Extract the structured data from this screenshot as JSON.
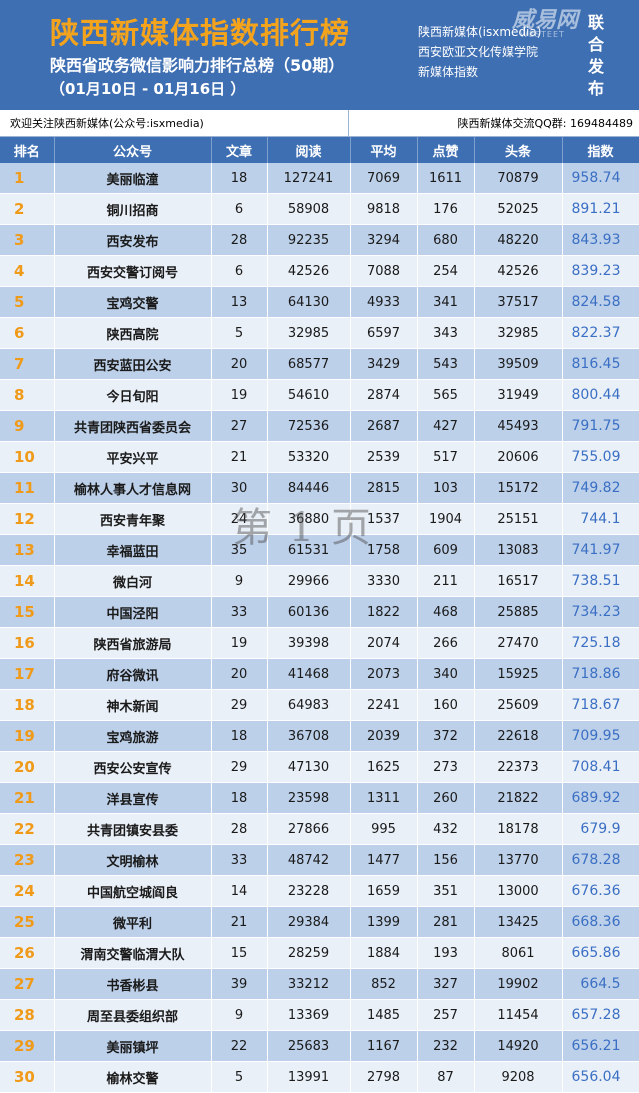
{
  "header": {
    "title": "陕西新媒体指数排行榜",
    "subtitle": "陕西省政务微信影响力排行总榜（50期）",
    "date_range": "（01月10日 - 01月16日 ）",
    "right_lines": [
      "陕西新媒体(isxmedia)",
      "西安欧亚文化传媒学院",
      "新媒体指数"
    ],
    "publish_label": "联合发布",
    "logo_text": "威易网",
    "logo_url": "WESTEET"
  },
  "follow_bar": {
    "left_text": "欢迎关注陕西新媒体(公众号:isxmedia)",
    "right_text": "陕西新媒体交流QQ群: 169484489"
  },
  "table": {
    "columns": [
      "排名",
      "公众号",
      "文章",
      "阅读",
      "平均",
      "点赞",
      "头条",
      "指数"
    ],
    "rows": [
      [
        "1",
        "美丽临潼",
        "18",
        "127241",
        "7069",
        "1611",
        "70879",
        "958.74"
      ],
      [
        "2",
        "铜川招商",
        "6",
        "58908",
        "9818",
        "176",
        "52025",
        "891.21"
      ],
      [
        "3",
        "西安发布",
        "28",
        "92235",
        "3294",
        "680",
        "48220",
        "843.93"
      ],
      [
        "4",
        "西安交警订阅号",
        "6",
        "42526",
        "7088",
        "254",
        "42526",
        "839.23"
      ],
      [
        "5",
        "宝鸡交警",
        "13",
        "64130",
        "4933",
        "341",
        "37517",
        "824.58"
      ],
      [
        "6",
        "陕西高院",
        "5",
        "32985",
        "6597",
        "343",
        "32985",
        "822.37"
      ],
      [
        "7",
        "西安蓝田公安",
        "20",
        "68577",
        "3429",
        "543",
        "39509",
        "816.45"
      ],
      [
        "8",
        "今日旬阳",
        "19",
        "54610",
        "2874",
        "565",
        "31949",
        "800.44"
      ],
      [
        "9",
        "共青团陕西省委员会",
        "27",
        "72536",
        "2687",
        "427",
        "45493",
        "791.75"
      ],
      [
        "10",
        "平安兴平",
        "21",
        "53320",
        "2539",
        "517",
        "20606",
        "755.09"
      ],
      [
        "11",
        "榆林人事人才信息网",
        "30",
        "84446",
        "2815",
        "103",
        "15172",
        "749.82"
      ],
      [
        "12",
        "西安青年聚",
        "24",
        "36880",
        "1537",
        "1904",
        "25151",
        "744.1"
      ],
      [
        "13",
        "幸福蓝田",
        "35",
        "61531",
        "1758",
        "609",
        "13083",
        "741.97"
      ],
      [
        "14",
        "微白河",
        "9",
        "29966",
        "3330",
        "211",
        "16517",
        "738.51"
      ],
      [
        "15",
        "中国泾阳",
        "33",
        "60136",
        "1822",
        "468",
        "25885",
        "734.23"
      ],
      [
        "16",
        "陕西省旅游局",
        "19",
        "39398",
        "2074",
        "266",
        "27470",
        "725.18"
      ],
      [
        "17",
        "府谷微讯",
        "20",
        "41468",
        "2073",
        "340",
        "15925",
        "718.86"
      ],
      [
        "18",
        "神木新闻",
        "29",
        "64983",
        "2241",
        "160",
        "25609",
        "718.67"
      ],
      [
        "19",
        "宝鸡旅游",
        "18",
        "36708",
        "2039",
        "372",
        "22618",
        "709.95"
      ],
      [
        "20",
        "西安公安宣传",
        "29",
        "47130",
        "1625",
        "273",
        "22373",
        "708.41"
      ],
      [
        "21",
        "洋县宣传",
        "18",
        "23598",
        "1311",
        "260",
        "21822",
        "689.92"
      ],
      [
        "22",
        "共青团镇安县委",
        "28",
        "27866",
        "995",
        "432",
        "18178",
        "679.9"
      ],
      [
        "23",
        "文明榆林",
        "33",
        "48742",
        "1477",
        "156",
        "13770",
        "678.28"
      ],
      [
        "24",
        "中国航空城阎良",
        "14",
        "23228",
        "1659",
        "351",
        "13000",
        "676.36"
      ],
      [
        "25",
        "微平利",
        "21",
        "29384",
        "1399",
        "281",
        "13425",
        "668.36"
      ],
      [
        "26",
        "渭南交警临渭大队",
        "15",
        "28259",
        "1884",
        "193",
        "8061",
        "665.86"
      ],
      [
        "27",
        "书香彬县",
        "39",
        "33212",
        "852",
        "327",
        "19902",
        "664.5"
      ],
      [
        "28",
        "周至县委组织部",
        "9",
        "13369",
        "1485",
        "257",
        "11454",
        "657.28"
      ],
      [
        "29",
        "美丽镇坪",
        "22",
        "25683",
        "1167",
        "232",
        "14920",
        "656.21"
      ],
      [
        "30",
        "榆林交警",
        "5",
        "13991",
        "2798",
        "87",
        "9208",
        "656.04"
      ]
    ]
  },
  "watermark": "第 1 页",
  "colors": {
    "header_bg": "#3f6fb3",
    "title_orange": "#f3a31c",
    "row_odd": "#bdd0e9",
    "row_even": "#eaf0f8",
    "rank_orange": "#f09a1a",
    "index_blue": "#3a6fc4"
  }
}
